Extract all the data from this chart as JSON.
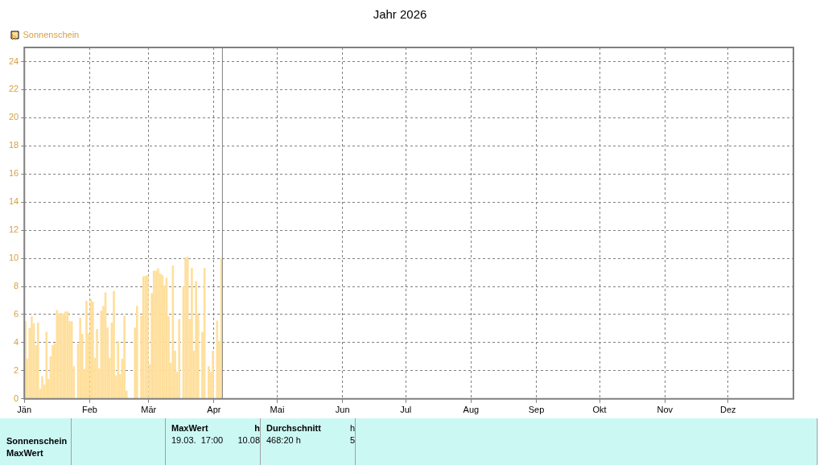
{
  "chart_data": {
    "type": "bar",
    "title": "Jahr 2026",
    "ylabel": "h",
    "x": [
      "2026-01-01",
      "2026-01-02",
      "2026-01-03",
      "2026-01-04",
      "2026-01-05",
      "2026-01-06",
      "2026-01-07",
      "2026-01-08",
      "2026-01-09",
      "2026-01-10",
      "2026-01-11",
      "2026-01-12",
      "2026-01-13",
      "2026-01-14",
      "2026-01-15",
      "2026-01-16",
      "2026-01-17",
      "2026-01-18",
      "2026-01-19",
      "2026-01-20",
      "2026-01-21",
      "2026-01-22",
      "2026-01-23",
      "2026-01-24",
      "2026-01-25",
      "2026-01-26",
      "2026-01-27",
      "2026-01-28",
      "2026-01-29",
      "2026-01-30",
      "2026-01-31",
      "2026-02-01",
      "2026-02-02",
      "2026-02-03",
      "2026-02-04",
      "2026-02-05",
      "2026-02-06",
      "2026-02-07",
      "2026-02-08",
      "2026-02-09",
      "2026-02-10",
      "2026-02-11",
      "2026-02-12",
      "2026-02-13",
      "2026-02-14",
      "2026-02-15",
      "2026-02-16",
      "2026-02-17",
      "2026-02-18",
      "2026-02-19",
      "2026-02-20",
      "2026-02-21",
      "2026-02-22",
      "2026-02-23",
      "2026-02-24",
      "2026-02-25",
      "2026-02-26",
      "2026-02-27",
      "2026-02-28",
      "2026-03-01",
      "2026-03-02",
      "2026-03-03",
      "2026-03-04",
      "2026-03-05",
      "2026-03-06",
      "2026-03-07",
      "2026-03-08",
      "2026-03-09",
      "2026-03-10",
      "2026-03-11",
      "2026-03-12",
      "2026-03-13",
      "2026-03-14",
      "2026-03-15",
      "2026-03-16",
      "2026-03-17",
      "2026-03-18",
      "2026-03-19",
      "2026-03-20",
      "2026-03-21",
      "2026-03-22",
      "2026-03-23",
      "2026-03-24",
      "2026-03-25",
      "2026-03-26",
      "2026-03-27",
      "2026-03-28",
      "2026-03-29",
      "2026-03-30",
      "2026-03-31",
      "2026-04-01",
      "2026-04-02",
      "2026-04-03",
      "2026-04-04"
    ],
    "series": [
      {
        "name": "Sonnenschein",
        "color": "#ffdf9c",
        "values": [
          5.5,
          2.85,
          5.0,
          5.85,
          5.35,
          3.8,
          5.4,
          0.7,
          1.6,
          1.0,
          4.75,
          1.4,
          3.0,
          3.8,
          3.95,
          6.3,
          6.05,
          6.1,
          6.05,
          6.2,
          6.2,
          5.5,
          5.5,
          2.3,
          0,
          3.9,
          5.75,
          4.6,
          2.1,
          6.95,
          4.65,
          7.1,
          6.9,
          2.9,
          4.95,
          2.15,
          6.25,
          6.6,
          7.55,
          5.05,
          2.9,
          5.4,
          7.65,
          1.65,
          4.1,
          1.75,
          2.85,
          5.9,
          0.55,
          0,
          0,
          0,
          5.05,
          6.6,
          0,
          5.9,
          8.7,
          8.75,
          8.75,
          2.45,
          7.5,
          9.1,
          9.1,
          9.25,
          8.9,
          8.8,
          8.05,
          8.6,
          5.85,
          2.55,
          9.45,
          3.4,
          1.9,
          5.65,
          0,
          8.0,
          10.05,
          10.08,
          5.65,
          9.3,
          3.4,
          8.35,
          6.0,
          0,
          4.75,
          9.3,
          0,
          2.3,
          1.9,
          3.4,
          0,
          5.55,
          4.1,
          10.0
        ]
      }
    ],
    "xlim": [
      "2026-01-01",
      "2027-01-01"
    ],
    "xticks": [
      {
        "value": "2026-01-01",
        "label": "Jän"
      },
      {
        "value": "2026-02-01",
        "label": "Feb"
      },
      {
        "value": "2026-03-01",
        "label": "Mär"
      },
      {
        "value": "2026-04-01",
        "label": "Apr"
      },
      {
        "value": "2026-05-01",
        "label": "Mai"
      },
      {
        "value": "2026-06-01",
        "label": "Jun"
      },
      {
        "value": "2026-07-01",
        "label": "Jul"
      },
      {
        "value": "2026-08-01",
        "label": "Aug"
      },
      {
        "value": "2026-09-01",
        "label": "Sep"
      },
      {
        "value": "2026-10-01",
        "label": "Okt"
      },
      {
        "value": "2026-11-01",
        "label": "Nov"
      },
      {
        "value": "2026-12-01",
        "label": "Dez"
      }
    ],
    "ylim": [
      0,
      25
    ],
    "yticks": [
      0,
      2,
      4,
      6,
      8,
      10,
      12,
      14,
      16,
      18,
      20,
      22,
      24
    ],
    "grid": true,
    "legend": "top left",
    "ref_lines": [
      {
        "axis": "x",
        "value": "2026-04-05",
        "color": "#808080"
      }
    ],
    "annotations": [
      "Sonnenschein",
      "MaxWert",
      "MaxWert",
      "h",
      "19.03.  17:00",
      "10.08",
      "Durchschnitt",
      "h",
      "468:20 h",
      "5"
    ]
  }
}
